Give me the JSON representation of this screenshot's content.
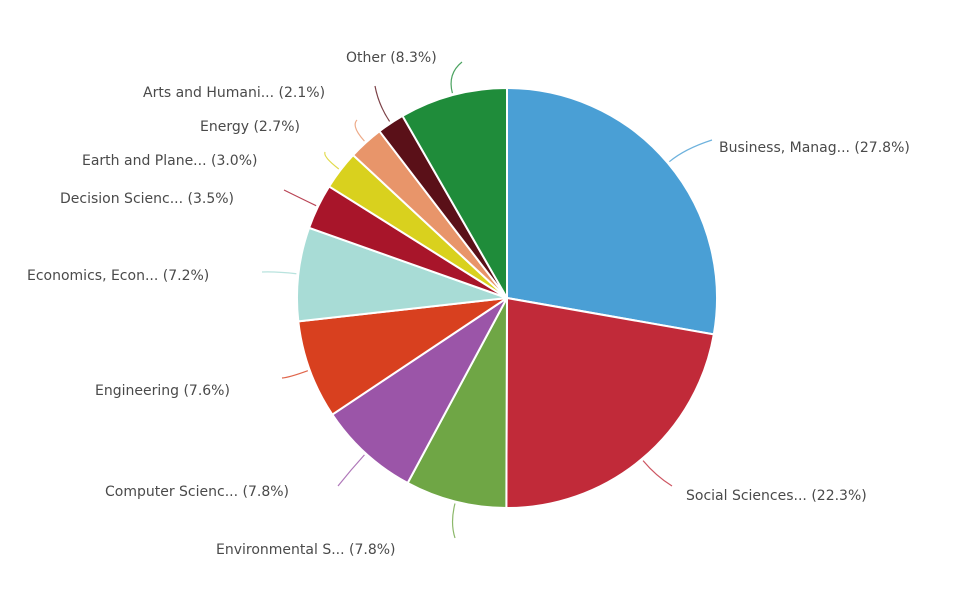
{
  "chart_data": {
    "type": "pie",
    "title": "",
    "start_angle_deg": 0,
    "direction": "clockwise",
    "slices": [
      {
        "label": "Business, Manag...",
        "value": 27.8,
        "display": "Business, Manag... (27.8%)",
        "color": "#4a9fd5"
      },
      {
        "label": "Social Sciences...",
        "value": 22.3,
        "display": "Social Sciences... (22.3%)",
        "color": "#c12a39"
      },
      {
        "label": "Environmental S...",
        "value": 7.8,
        "display": "Environmental S... (7.8%)",
        "color": "#6fa645"
      },
      {
        "label": "Computer Scienc...",
        "value": 7.8,
        "display": "Computer Scienc... (7.8%)",
        "color": "#9b55a8"
      },
      {
        "label": "Engineering",
        "value": 7.6,
        "display": "Engineering (7.6%)",
        "color": "#d8401f"
      },
      {
        "label": "Economics, Econ...",
        "value": 7.2,
        "display": "Economics, Econ... (7.2%)",
        "color": "#a8dcd6"
      },
      {
        "label": "Decision Scienc...",
        "value": 3.5,
        "display": "Decision Scienc... (3.5%)",
        "color": "#a8152a"
      },
      {
        "label": "Earth and Plane...",
        "value": 3.0,
        "display": "Earth and Plane... (3.0%)",
        "color": "#d9d11e"
      },
      {
        "label": "Energy",
        "value": 2.7,
        "display": "Energy (2.7%)",
        "color": "#e8956a"
      },
      {
        "label": "Arts and Humani...",
        "value": 2.1,
        "display": "Arts and Humani... (2.1%)",
        "color": "#5a1018"
      },
      {
        "label": "Other",
        "value": 8.3,
        "display": "Other (8.3%)",
        "color": "#1f8c3a"
      }
    ],
    "legend": "none (leader-line labels)"
  }
}
